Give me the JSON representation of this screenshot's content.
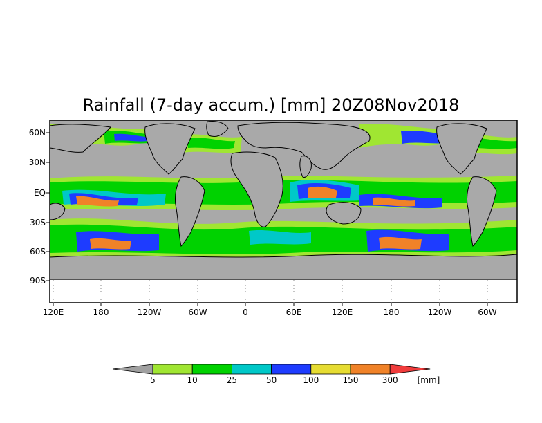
{
  "title": "Rainfall (7-day accum.) [mm] 20Z08Nov2018",
  "map": {
    "lat_labels": [
      "60N",
      "30N",
      "EQ",
      "30S",
      "60S",
      "90S"
    ],
    "lon_labels": [
      "120E",
      "180",
      "120W",
      "60W",
      "0",
      "60E",
      "120E",
      "180",
      "120W",
      "60W"
    ],
    "no_data_color": "#a9a9a9",
    "land_outline_color": "#000000"
  },
  "colorbar": {
    "unit": "[mm]",
    "ticks": [
      "5",
      "10",
      "25",
      "50",
      "100",
      "150",
      "300"
    ],
    "colors": [
      "#a0a0a0",
      "#a0e632",
      "#00d200",
      "#00c8c8",
      "#1e3cff",
      "#e6dc32",
      "#f08228",
      "#f03c3c"
    ]
  }
}
